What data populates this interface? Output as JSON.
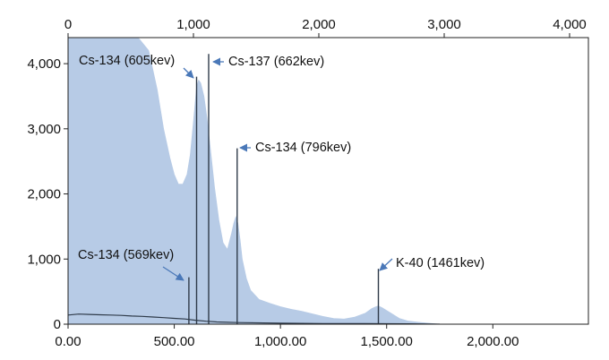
{
  "chart_data": {
    "type": "area",
    "title": "",
    "xlabel": "",
    "ylabel": "",
    "grid": false,
    "colors": {
      "fill": "#b7cbe6",
      "line": "#2f3b4a",
      "arrow": "#4a78b8",
      "frame": "#222222"
    },
    "x_bottom": {
      "range": [
        0,
        2450
      ],
      "ticks": [
        0,
        500,
        1000,
        1500,
        2000
      ],
      "tick_labels": [
        "0.00",
        "500.00",
        "1,000.00",
        "1,500.00",
        "2,000.00"
      ]
    },
    "x_top": {
      "range": [
        0,
        4150
      ],
      "ticks": [
        0,
        1000,
        2000,
        3000,
        4000
      ],
      "tick_labels": [
        "0",
        "1,000",
        "2,000",
        "3,000",
        "4,000"
      ]
    },
    "y": {
      "range": [
        0,
        4400
      ],
      "ticks": [
        0,
        1000,
        2000,
        3000,
        4000
      ],
      "tick_labels": [
        "0",
        "1,000",
        "2,000",
        "3,000",
        "4,000"
      ]
    },
    "series": [
      {
        "kind": "area",
        "x": [
          0,
          60,
          150,
          250,
          330,
          380,
          420,
          450,
          480,
          500,
          520,
          540,
          560,
          575,
          590,
          605,
          615,
          625,
          640,
          655,
          670,
          690,
          710,
          730,
          750,
          770,
          780,
          790,
          800,
          810,
          820,
          840,
          860,
          900,
          950,
          1000,
          1050,
          1100,
          1150,
          1200,
          1250,
          1300,
          1350,
          1400,
          1430,
          1450,
          1461,
          1480,
          1520,
          1560,
          1600,
          1650,
          1700,
          1750
        ],
        "y": [
          4400,
          4400,
          4400,
          4400,
          4400,
          4200,
          3600,
          3000,
          2550,
          2300,
          2150,
          2150,
          2300,
          2600,
          3100,
          3650,
          3750,
          3700,
          3500,
          3150,
          2700,
          2100,
          1600,
          1250,
          1150,
          1400,
          1550,
          1650,
          1550,
          1300,
          1000,
          700,
          520,
          380,
          320,
          270,
          230,
          200,
          160,
          120,
          90,
          80,
          110,
          170,
          240,
          270,
          280,
          250,
          170,
          90,
          50,
          30,
          15,
          0
        ]
      },
      {
        "kind": "line",
        "x": [
          0,
          50,
          100,
          150,
          200,
          250,
          300,
          350,
          400,
          450,
          500,
          550,
          600,
          650,
          700,
          800,
          1000,
          1200,
          1400,
          1600,
          1750
        ],
        "y": [
          140,
          155,
          150,
          145,
          140,
          135,
          125,
          120,
          110,
          100,
          90,
          80,
          60,
          45,
          35,
          25,
          15,
          10,
          8,
          5,
          0
        ]
      }
    ],
    "peaks": [
      {
        "x": 569,
        "y": 720
      },
      {
        "x": 605,
        "y": 3800
      },
      {
        "x": 662,
        "y": 4150
      },
      {
        "x": 796,
        "y": 2700
      },
      {
        "x": 1461,
        "y": 850
      }
    ],
    "annotations": [
      {
        "text": "Cs-134 (569kev)"
      },
      {
        "text": "Cs-134 (605kev)"
      },
      {
        "text": "Cs-137 (662kev)"
      },
      {
        "text": "Cs-134 (796kev)"
      },
      {
        "text": "K-40 (1461kev)"
      }
    ]
  }
}
